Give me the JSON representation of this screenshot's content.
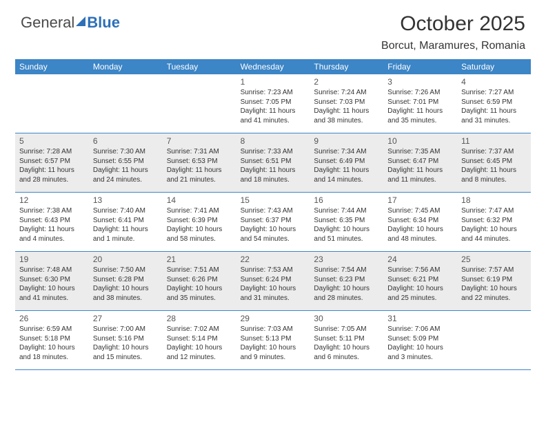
{
  "logo": {
    "general": "General",
    "blue": "Blue"
  },
  "title": "October 2025",
  "subtitle": "Borcut, Maramures, Romania",
  "colors": {
    "header_bg": "#3c85c6",
    "header_text": "#ffffff",
    "shade_bg": "#ececec",
    "border": "#3c85c6",
    "logo_blue": "#2d6fb8",
    "logo_gray": "#4a4a4a",
    "page_bg": "#ffffff",
    "text": "#333333"
  },
  "daysOfWeek": [
    "Sunday",
    "Monday",
    "Tuesday",
    "Wednesday",
    "Thursday",
    "Friday",
    "Saturday"
  ],
  "weeks": [
    [
      {
        "n": "",
        "sr": "",
        "ss": "",
        "dl": ""
      },
      {
        "n": "",
        "sr": "",
        "ss": "",
        "dl": ""
      },
      {
        "n": "",
        "sr": "",
        "ss": "",
        "dl": ""
      },
      {
        "n": "1",
        "sr": "Sunrise: 7:23 AM",
        "ss": "Sunset: 7:05 PM",
        "dl": "Daylight: 11 hours and 41 minutes."
      },
      {
        "n": "2",
        "sr": "Sunrise: 7:24 AM",
        "ss": "Sunset: 7:03 PM",
        "dl": "Daylight: 11 hours and 38 minutes."
      },
      {
        "n": "3",
        "sr": "Sunrise: 7:26 AM",
        "ss": "Sunset: 7:01 PM",
        "dl": "Daylight: 11 hours and 35 minutes."
      },
      {
        "n": "4",
        "sr": "Sunrise: 7:27 AM",
        "ss": "Sunset: 6:59 PM",
        "dl": "Daylight: 11 hours and 31 minutes."
      }
    ],
    [
      {
        "n": "5",
        "sr": "Sunrise: 7:28 AM",
        "ss": "Sunset: 6:57 PM",
        "dl": "Daylight: 11 hours and 28 minutes."
      },
      {
        "n": "6",
        "sr": "Sunrise: 7:30 AM",
        "ss": "Sunset: 6:55 PM",
        "dl": "Daylight: 11 hours and 24 minutes."
      },
      {
        "n": "7",
        "sr": "Sunrise: 7:31 AM",
        "ss": "Sunset: 6:53 PM",
        "dl": "Daylight: 11 hours and 21 minutes."
      },
      {
        "n": "8",
        "sr": "Sunrise: 7:33 AM",
        "ss": "Sunset: 6:51 PM",
        "dl": "Daylight: 11 hours and 18 minutes."
      },
      {
        "n": "9",
        "sr": "Sunrise: 7:34 AM",
        "ss": "Sunset: 6:49 PM",
        "dl": "Daylight: 11 hours and 14 minutes."
      },
      {
        "n": "10",
        "sr": "Sunrise: 7:35 AM",
        "ss": "Sunset: 6:47 PM",
        "dl": "Daylight: 11 hours and 11 minutes."
      },
      {
        "n": "11",
        "sr": "Sunrise: 7:37 AM",
        "ss": "Sunset: 6:45 PM",
        "dl": "Daylight: 11 hours and 8 minutes."
      }
    ],
    [
      {
        "n": "12",
        "sr": "Sunrise: 7:38 AM",
        "ss": "Sunset: 6:43 PM",
        "dl": "Daylight: 11 hours and 4 minutes."
      },
      {
        "n": "13",
        "sr": "Sunrise: 7:40 AM",
        "ss": "Sunset: 6:41 PM",
        "dl": "Daylight: 11 hours and 1 minute."
      },
      {
        "n": "14",
        "sr": "Sunrise: 7:41 AM",
        "ss": "Sunset: 6:39 PM",
        "dl": "Daylight: 10 hours and 58 minutes."
      },
      {
        "n": "15",
        "sr": "Sunrise: 7:43 AM",
        "ss": "Sunset: 6:37 PM",
        "dl": "Daylight: 10 hours and 54 minutes."
      },
      {
        "n": "16",
        "sr": "Sunrise: 7:44 AM",
        "ss": "Sunset: 6:35 PM",
        "dl": "Daylight: 10 hours and 51 minutes."
      },
      {
        "n": "17",
        "sr": "Sunrise: 7:45 AM",
        "ss": "Sunset: 6:34 PM",
        "dl": "Daylight: 10 hours and 48 minutes."
      },
      {
        "n": "18",
        "sr": "Sunrise: 7:47 AM",
        "ss": "Sunset: 6:32 PM",
        "dl": "Daylight: 10 hours and 44 minutes."
      }
    ],
    [
      {
        "n": "19",
        "sr": "Sunrise: 7:48 AM",
        "ss": "Sunset: 6:30 PM",
        "dl": "Daylight: 10 hours and 41 minutes."
      },
      {
        "n": "20",
        "sr": "Sunrise: 7:50 AM",
        "ss": "Sunset: 6:28 PM",
        "dl": "Daylight: 10 hours and 38 minutes."
      },
      {
        "n": "21",
        "sr": "Sunrise: 7:51 AM",
        "ss": "Sunset: 6:26 PM",
        "dl": "Daylight: 10 hours and 35 minutes."
      },
      {
        "n": "22",
        "sr": "Sunrise: 7:53 AM",
        "ss": "Sunset: 6:24 PM",
        "dl": "Daylight: 10 hours and 31 minutes."
      },
      {
        "n": "23",
        "sr": "Sunrise: 7:54 AM",
        "ss": "Sunset: 6:23 PM",
        "dl": "Daylight: 10 hours and 28 minutes."
      },
      {
        "n": "24",
        "sr": "Sunrise: 7:56 AM",
        "ss": "Sunset: 6:21 PM",
        "dl": "Daylight: 10 hours and 25 minutes."
      },
      {
        "n": "25",
        "sr": "Sunrise: 7:57 AM",
        "ss": "Sunset: 6:19 PM",
        "dl": "Daylight: 10 hours and 22 minutes."
      }
    ],
    [
      {
        "n": "26",
        "sr": "Sunrise: 6:59 AM",
        "ss": "Sunset: 5:18 PM",
        "dl": "Daylight: 10 hours and 18 minutes."
      },
      {
        "n": "27",
        "sr": "Sunrise: 7:00 AM",
        "ss": "Sunset: 5:16 PM",
        "dl": "Daylight: 10 hours and 15 minutes."
      },
      {
        "n": "28",
        "sr": "Sunrise: 7:02 AM",
        "ss": "Sunset: 5:14 PM",
        "dl": "Daylight: 10 hours and 12 minutes."
      },
      {
        "n": "29",
        "sr": "Sunrise: 7:03 AM",
        "ss": "Sunset: 5:13 PM",
        "dl": "Daylight: 10 hours and 9 minutes."
      },
      {
        "n": "30",
        "sr": "Sunrise: 7:05 AM",
        "ss": "Sunset: 5:11 PM",
        "dl": "Daylight: 10 hours and 6 minutes."
      },
      {
        "n": "31",
        "sr": "Sunrise: 7:06 AM",
        "ss": "Sunset: 5:09 PM",
        "dl": "Daylight: 10 hours and 3 minutes."
      },
      {
        "n": "",
        "sr": "",
        "ss": "",
        "dl": ""
      }
    ]
  ]
}
